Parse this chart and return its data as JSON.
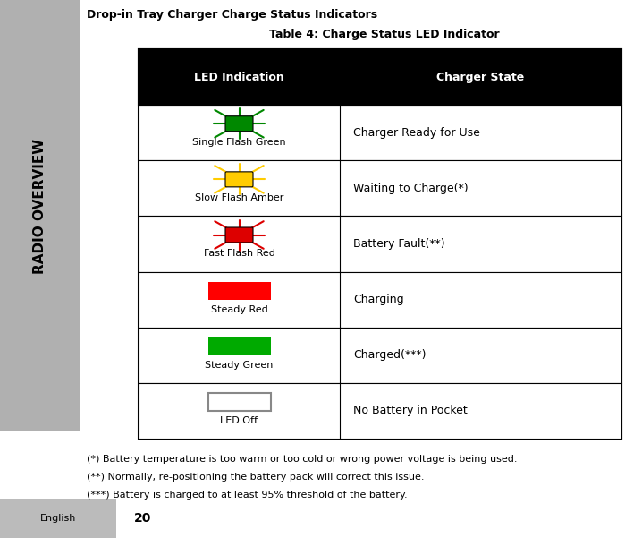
{
  "title": "Drop-in Tray Charger Charge Status Indicators",
  "table_title": "Table 4: Charge Status LED Indicator",
  "header": [
    "LED Indication",
    "Charger State"
  ],
  "rows": [
    {
      "label": "Single Flash Green",
      "state": "Charger Ready for Use",
      "color": "#008800",
      "type": "flash"
    },
    {
      "label": "Slow Flash Amber",
      "state": "Waiting to Charge(*)",
      "color": "#ffcc00",
      "type": "flash"
    },
    {
      "label": "Fast Flash Red",
      "state": "Battery Fault(**)",
      "color": "#dd0000",
      "type": "flash"
    },
    {
      "label": "Steady Red",
      "state": "Charging",
      "color": "#ff0000",
      "type": "rect"
    },
    {
      "label": "Steady Green",
      "state": "Charged(***)",
      "color": "#00aa00",
      "type": "rect"
    },
    {
      "label": "LED Off",
      "state": "No Battery in Pocket",
      "color": "#ffffff",
      "type": "rect_outline"
    }
  ],
  "footnotes": [
    "(*) Battery temperature is too warm or too cold or wrong power voltage is being used.",
    "(**) Normally, re-positioning the battery pack will correct this issue.",
    "(***) Battery is charged to at least 95% threshold of the battery."
  ],
  "page_number": "20",
  "side_label": "RADIO OVERVIEW",
  "bottom_label": "English",
  "bg_color": "#ffffff",
  "sidebar_color": "#b0b0b0",
  "header_bg": "#000000",
  "header_fg": "#ffffff",
  "fig_width": 6.99,
  "fig_height": 6.01,
  "dpi": 100
}
